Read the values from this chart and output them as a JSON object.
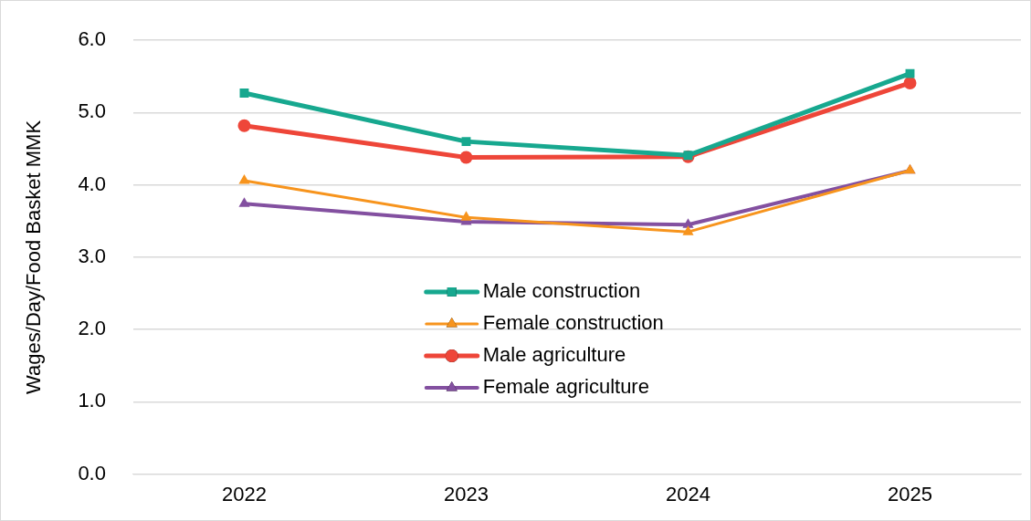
{
  "chart_data": {
    "type": "line",
    "ylabel": "Wages/Day/Food Basket MMK",
    "categories": [
      "2022",
      "2023",
      "2024",
      "2025"
    ],
    "series": [
      {
        "name": "Male construction",
        "color": "#17a88f",
        "values": [
          5.27,
          4.6,
          4.41,
          5.54
        ],
        "marker": "square"
      },
      {
        "name": "Female construction",
        "color": "#f7941d",
        "values": [
          4.06,
          3.55,
          3.35,
          4.2
        ],
        "marker": "triangle"
      },
      {
        "name": "Male agriculture",
        "color": "#ee4639",
        "values": [
          4.82,
          4.38,
          4.39,
          5.41
        ],
        "marker": "circle"
      },
      {
        "name": "Female agriculture",
        "color": "#8350a0",
        "values": [
          3.74,
          3.49,
          3.45,
          4.2
        ],
        "marker": "triangle"
      }
    ],
    "ylim": [
      0,
      6
    ],
    "yticks": [
      {
        "value": 0,
        "label": "0.0"
      },
      {
        "value": 1,
        "label": "1.0"
      },
      {
        "value": 2,
        "label": "2.0"
      },
      {
        "value": 3,
        "label": "3.0"
      },
      {
        "value": 4,
        "label": "4.0"
      },
      {
        "value": 5,
        "label": "5.0"
      },
      {
        "value": 6,
        "label": "6.0"
      }
    ],
    "grid": "y",
    "legend": "center"
  }
}
